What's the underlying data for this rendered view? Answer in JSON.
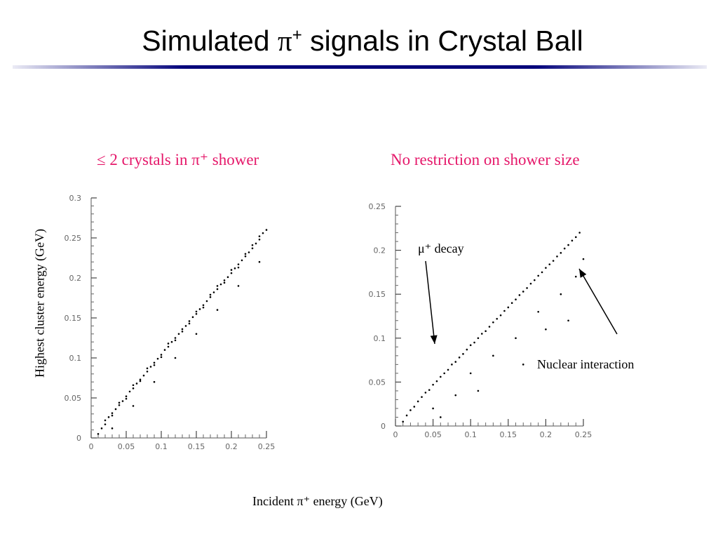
{
  "title": {
    "prefix": "Simulated ",
    "particle": "π",
    "charge": "+",
    "suffix": " signals in Crystal Ball"
  },
  "colors": {
    "subtitle": "#e5186a",
    "title_rule": "#00007a"
  },
  "y_axis_label": "Highest cluster energy (GeV)",
  "x_axis_label": "Incident π⁺ energy (GeV)",
  "chart_data": [
    {
      "type": "scatter",
      "title": "≤ 2 crystals in π⁺ shower",
      "xlabel": "Incident π⁺ energy (GeV)",
      "ylabel": "Highest cluster energy (GeV)",
      "xlim": [
        0,
        0.25
      ],
      "ylim": [
        0,
        0.3
      ],
      "xticks": [
        0,
        0.05,
        0.1,
        0.15,
        0.2,
        0.25
      ],
      "xticklabels": [
        "0",
        "0.05",
        "0.1",
        "0.15",
        "0.2",
        "0.25"
      ],
      "yticks": [
        0,
        0.05,
        0.1,
        0.15,
        0.2,
        0.25,
        0.3
      ],
      "yticklabels": [
        "0",
        "0.05",
        "0.1",
        "0.15",
        "0.2",
        "0.25",
        "0.3"
      ],
      "points": {
        "x": [
          0.01,
          0.015,
          0.02,
          0.02,
          0.025,
          0.03,
          0.03,
          0.035,
          0.04,
          0.04,
          0.045,
          0.05,
          0.05,
          0.055,
          0.06,
          0.06,
          0.065,
          0.07,
          0.07,
          0.075,
          0.08,
          0.08,
          0.085,
          0.09,
          0.09,
          0.095,
          0.1,
          0.1,
          0.105,
          0.11,
          0.11,
          0.115,
          0.12,
          0.12,
          0.125,
          0.13,
          0.13,
          0.135,
          0.14,
          0.14,
          0.145,
          0.15,
          0.15,
          0.155,
          0.16,
          0.16,
          0.165,
          0.17,
          0.17,
          0.175,
          0.18,
          0.18,
          0.185,
          0.19,
          0.19,
          0.195,
          0.2,
          0.2,
          0.205,
          0.21,
          0.21,
          0.215,
          0.22,
          0.22,
          0.225,
          0.23,
          0.23,
          0.235,
          0.24,
          0.24,
          0.245,
          0.25,
          0.03,
          0.06,
          0.09,
          0.12,
          0.15,
          0.18,
          0.21,
          0.24
        ],
        "y": [
          0.005,
          0.012,
          0.017,
          0.022,
          0.026,
          0.031,
          0.028,
          0.036,
          0.041,
          0.044,
          0.046,
          0.052,
          0.049,
          0.058,
          0.062,
          0.066,
          0.068,
          0.073,
          0.071,
          0.078,
          0.083,
          0.087,
          0.089,
          0.094,
          0.091,
          0.099,
          0.104,
          0.101,
          0.11,
          0.114,
          0.118,
          0.12,
          0.125,
          0.122,
          0.13,
          0.136,
          0.133,
          0.14,
          0.146,
          0.143,
          0.151,
          0.155,
          0.158,
          0.161,
          0.166,
          0.163,
          0.171,
          0.176,
          0.179,
          0.182,
          0.186,
          0.19,
          0.192,
          0.197,
          0.194,
          0.201,
          0.206,
          0.21,
          0.212,
          0.217,
          0.213,
          0.222,
          0.227,
          0.23,
          0.232,
          0.237,
          0.241,
          0.243,
          0.248,
          0.252,
          0.256,
          0.26,
          0.012,
          0.04,
          0.07,
          0.1,
          0.13,
          0.16,
          0.19,
          0.22
        ]
      }
    },
    {
      "type": "scatter",
      "title": "No restriction on shower size",
      "xlabel": "Incident π⁺ energy (GeV)",
      "ylabel": "Highest cluster energy (GeV)",
      "xlim": [
        0,
        0.25
      ],
      "ylim": [
        0,
        0.25
      ],
      "xticks": [
        0,
        0.05,
        0.1,
        0.15,
        0.2,
        0.25
      ],
      "xticklabels": [
        "0",
        "0.05",
        "0.1",
        "0.15",
        "0.2",
        "0.25"
      ],
      "yticks": [
        0,
        0.05,
        0.1,
        0.15,
        0.2,
        0.25
      ],
      "yticklabels": [
        "0",
        "0.05",
        "0.1",
        "0.15",
        "0.2",
        "0.25"
      ],
      "points": {
        "x": [
          0.01,
          0.015,
          0.02,
          0.025,
          0.03,
          0.035,
          0.04,
          0.045,
          0.05,
          0.055,
          0.06,
          0.065,
          0.07,
          0.075,
          0.08,
          0.085,
          0.09,
          0.095,
          0.1,
          0.105,
          0.11,
          0.115,
          0.12,
          0.125,
          0.13,
          0.135,
          0.14,
          0.145,
          0.15,
          0.155,
          0.16,
          0.165,
          0.17,
          0.175,
          0.18,
          0.185,
          0.19,
          0.195,
          0.2,
          0.205,
          0.21,
          0.215,
          0.22,
          0.225,
          0.23,
          0.235,
          0.24,
          0.245,
          0.05,
          0.08,
          0.1,
          0.13,
          0.16,
          0.19,
          0.22,
          0.24,
          0.06,
          0.11,
          0.17,
          0.2,
          0.23,
          0.25
        ],
        "y": [
          0.005,
          0.012,
          0.018,
          0.022,
          0.028,
          0.033,
          0.038,
          0.041,
          0.047,
          0.051,
          0.056,
          0.06,
          0.064,
          0.07,
          0.073,
          0.078,
          0.082,
          0.087,
          0.092,
          0.095,
          0.1,
          0.105,
          0.108,
          0.113,
          0.118,
          0.122,
          0.126,
          0.131,
          0.135,
          0.14,
          0.144,
          0.149,
          0.153,
          0.157,
          0.162,
          0.166,
          0.171,
          0.175,
          0.18,
          0.184,
          0.188,
          0.193,
          0.197,
          0.202,
          0.206,
          0.211,
          0.215,
          0.22,
          0.02,
          0.035,
          0.06,
          0.08,
          0.1,
          0.13,
          0.15,
          0.17,
          0.01,
          0.04,
          0.07,
          0.11,
          0.12,
          0.19
        ]
      },
      "annotations": [
        {
          "text": "μ⁺ decay"
        },
        {
          "text": "Nuclear interaction"
        }
      ]
    }
  ]
}
